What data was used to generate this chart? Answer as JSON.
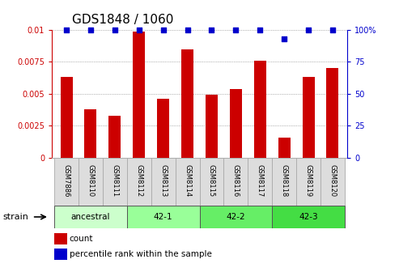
{
  "title": "GDS1848 / 1060",
  "categories": [
    "GSM7886",
    "GSM8110",
    "GSM8111",
    "GSM8112",
    "GSM8113",
    "GSM8114",
    "GSM8115",
    "GSM8116",
    "GSM8117",
    "GSM8118",
    "GSM8119",
    "GSM8120"
  ],
  "bar_values": [
    0.0063,
    0.0038,
    0.0033,
    0.0099,
    0.0046,
    0.0085,
    0.0049,
    0.0054,
    0.0076,
    0.0016,
    0.0063,
    0.007
  ],
  "percentile_values": [
    100,
    100,
    100,
    100,
    100,
    100,
    100,
    100,
    100,
    93,
    100,
    100
  ],
  "bar_color": "#cc0000",
  "percentile_color": "#0000cc",
  "ylim_left": [
    0,
    0.01
  ],
  "ylim_right": [
    0,
    100
  ],
  "yticks_left": [
    0,
    0.0025,
    0.005,
    0.0075,
    0.01
  ],
  "ytick_labels_left": [
    "0",
    "0.0025",
    "0.005",
    "0.0075",
    "0.01"
  ],
  "yticks_right": [
    0,
    25,
    50,
    75,
    100
  ],
  "ytick_labels_right": [
    "0",
    "25",
    "50",
    "75",
    "100%"
  ],
  "strain_groups": [
    {
      "label": "ancestral",
      "start": 0,
      "end": 3,
      "color": "#ccffcc"
    },
    {
      "label": "42-1",
      "start": 3,
      "end": 6,
      "color": "#99ff99"
    },
    {
      "label": "42-2",
      "start": 6,
      "end": 9,
      "color": "#66ee66"
    },
    {
      "label": "42-3",
      "start": 9,
      "end": 12,
      "color": "#44dd44"
    }
  ],
  "strain_label": "strain",
  "legend_count_label": "count",
  "legend_percentile_label": "percentile rank within the sample",
  "bar_color_legend": "#cc0000",
  "percentile_color_legend": "#0000cc",
  "background_color": "#ffffff",
  "tick_color_left": "#cc0000",
  "tick_color_right": "#0000cc",
  "grid_color": "#777777",
  "bar_width": 0.5,
  "tick_label_bg": "#dddddd",
  "tick_label_border": "#aaaaaa",
  "title_fontsize": 11,
  "tick_fontsize": 7,
  "category_fontsize": 6,
  "strain_fontsize": 7.5,
  "legend_fontsize": 7.5
}
